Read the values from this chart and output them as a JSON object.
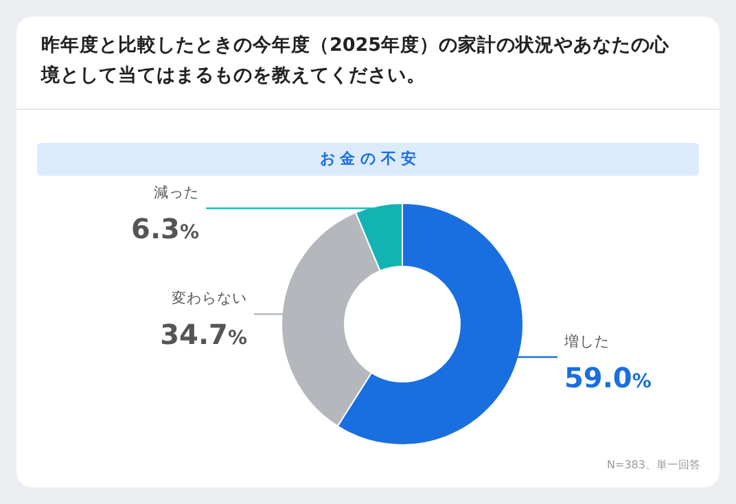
{
  "chart_data": {
    "type": "donut",
    "title": "昨年度と比較したときの今年度（2025年度）の家計の状況やあなたの心境として当てはまるものを教えてください。",
    "subtitle": "お 金 の 不 安",
    "categories": [
      "増した",
      "変わらない",
      "減った"
    ],
    "values": [
      59.0,
      34.7,
      6.3
    ],
    "value_labels": [
      "59.0%",
      "34.7%",
      "6.3%"
    ],
    "colors": [
      "#1a6fe0",
      "#b4b8bd",
      "#14b3b3"
    ],
    "annotations": [
      "N=383、単一回答"
    ]
  }
}
